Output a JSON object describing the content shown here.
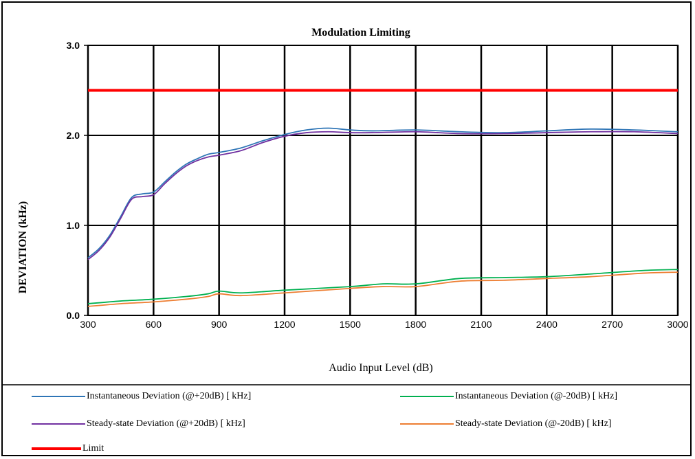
{
  "chart_data": {
    "type": "line",
    "title": "Modulation Limiting",
    "xlabel": "Audio Input Level (dB)",
    "ylabel": "DEVIATION (kHz)",
    "xlim": [
      300,
      3000
    ],
    "ylim": [
      0,
      3.0
    ],
    "x_ticks": [
      "300",
      "600",
      "900",
      "1200",
      "1500",
      "1800",
      "2100",
      "2400",
      "2700",
      "3000"
    ],
    "y_ticks": [
      "0.0",
      "1.0",
      "2.0",
      "3.0"
    ],
    "grid": true,
    "legend_position": "bottom",
    "series": [
      {
        "name": "Instantaneous Deviation (@+20dB) [ kHz]",
        "color": "#2e75b6",
        "x": [
          300,
          350,
          400,
          450,
          500,
          550,
          600,
          650,
          700,
          750,
          800,
          850,
          900,
          1000,
          1100,
          1200,
          1300,
          1400,
          1500,
          1600,
          1800,
          2000,
          2200,
          2400,
          2600,
          2800,
          3000
        ],
        "y": [
          0.64,
          0.74,
          0.89,
          1.1,
          1.31,
          1.35,
          1.37,
          1.48,
          1.59,
          1.68,
          1.74,
          1.79,
          1.81,
          1.86,
          1.94,
          2.01,
          2.06,
          2.08,
          2.06,
          2.05,
          2.06,
          2.04,
          2.03,
          2.05,
          2.07,
          2.06,
          2.04
        ]
      },
      {
        "name": "Steady-state Deviation (@+20dB) [ kHz]",
        "color": "#7030a0",
        "x": [
          300,
          350,
          400,
          450,
          500,
          550,
          600,
          650,
          700,
          750,
          800,
          850,
          900,
          1000,
          1100,
          1200,
          1300,
          1400,
          1500,
          1600,
          1800,
          2000,
          2200,
          2400,
          2600,
          2800,
          3000
        ],
        "y": [
          0.62,
          0.72,
          0.87,
          1.08,
          1.29,
          1.32,
          1.34,
          1.46,
          1.57,
          1.66,
          1.72,
          1.76,
          1.78,
          1.83,
          1.92,
          1.99,
          2.03,
          2.04,
          2.03,
          2.03,
          2.04,
          2.02,
          2.02,
          2.03,
          2.04,
          2.04,
          2.02
        ]
      },
      {
        "name": "Instantaneous Deviation (@-20dB) [ kHz]",
        "color": "#00b050",
        "x": [
          300,
          450,
          600,
          750,
          850,
          900,
          1000,
          1200,
          1500,
          1650,
          1800,
          2000,
          2200,
          2400,
          2600,
          2850,
          3000
        ],
        "y": [
          0.13,
          0.16,
          0.18,
          0.21,
          0.24,
          0.27,
          0.25,
          0.28,
          0.32,
          0.35,
          0.35,
          0.41,
          0.42,
          0.43,
          0.46,
          0.5,
          0.51
        ]
      },
      {
        "name": "Steady-state Deviation (@-20dB) [ kHz]",
        "color": "#ed7d31",
        "x": [
          300,
          450,
          600,
          750,
          850,
          900,
          1000,
          1200,
          1500,
          1650,
          1800,
          2000,
          2200,
          2400,
          2600,
          2850,
          3000
        ],
        "y": [
          0.1,
          0.13,
          0.15,
          0.18,
          0.21,
          0.24,
          0.22,
          0.25,
          0.3,
          0.32,
          0.32,
          0.38,
          0.39,
          0.41,
          0.43,
          0.47,
          0.48
        ]
      },
      {
        "name": "Limit",
        "color": "#ff0000",
        "x": [
          300,
          3000
        ],
        "y": [
          2.5,
          2.5
        ]
      }
    ]
  }
}
